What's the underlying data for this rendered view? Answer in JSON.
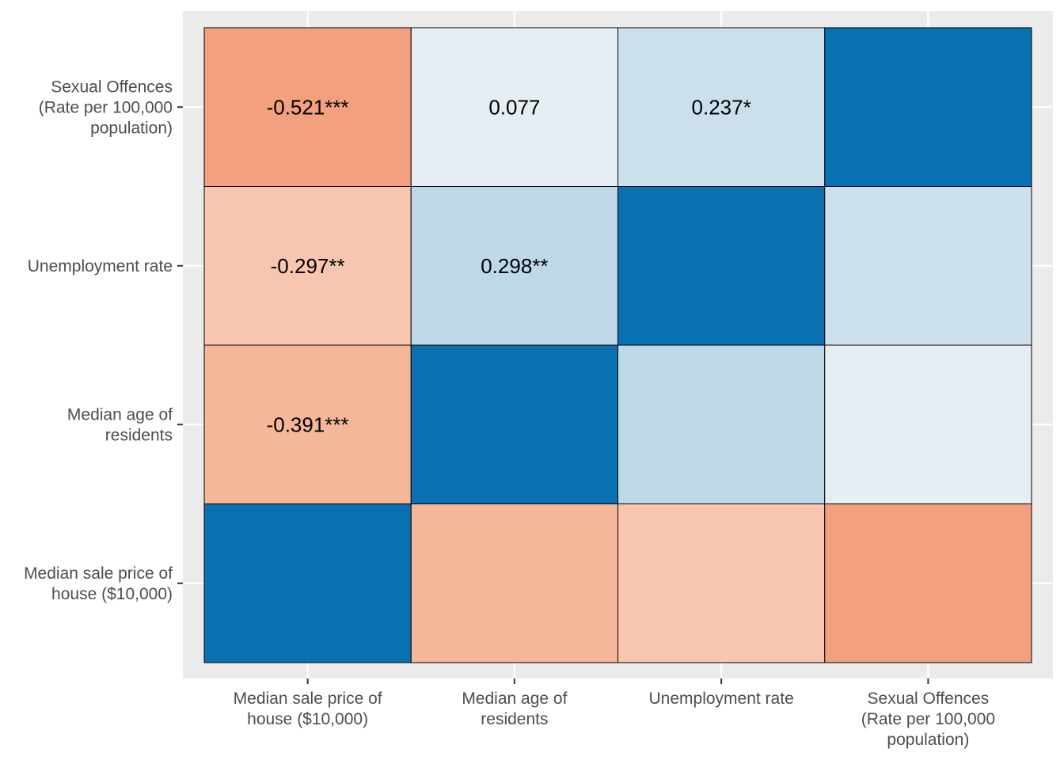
{
  "chart_data": {
    "type": "heatmap",
    "title": "",
    "xlabel": "",
    "ylabel": "",
    "x_categories": [
      [
        "Median sale price of",
        "house ($10,000)"
      ],
      [
        "Median age of",
        "residents"
      ],
      [
        "Unemployment rate"
      ],
      [
        "Sexual Offences",
        "(Rate per 100,000",
        "population)"
      ]
    ],
    "y_categories_bottom_to_top": [
      [
        "Median sale price of",
        "house ($10,000)"
      ],
      [
        "Median age of",
        "residents"
      ],
      [
        "Unemployment rate"
      ],
      [
        "Sexual Offences",
        "(Rate per 100,000",
        "population)"
      ]
    ],
    "matrix": [
      [
        1.0,
        -0.391,
        -0.297,
        -0.521
      ],
      [
        -0.391,
        1.0,
        0.298,
        0.077
      ],
      [
        -0.297,
        0.298,
        1.0,
        0.237
      ],
      [
        -0.521,
        0.077,
        0.237,
        1.0
      ]
    ],
    "labels": [
      [
        "",
        "",
        "",
        ""
      ],
      [
        "-0.391***",
        "",
        "",
        ""
      ],
      [
        "-0.297**",
        "0.298**",
        "",
        ""
      ],
      [
        "-0.521***",
        "0.077",
        "0.237*",
        ""
      ]
    ],
    "colors": {
      "strong_positive": "#0971b2",
      "weak_positive_0.3": "#bdd9e7",
      "weak_positive_0.24": "#cbe0ec",
      "weak_positive_0.08": "#e6eef3",
      "weak_negative_0.3": "#f8c6b0",
      "moderate_negative_0.39": "#f5b69a",
      "moderate_negative_0.52": "#f2a07e",
      "panel_background": "#ebebeb",
      "grid": "#ffffff",
      "cell_border": "#000000"
    },
    "color_scale": {
      "min": -1,
      "max": 1,
      "low": "diverging red",
      "high": "diverging blue"
    },
    "legend": "none",
    "grid": true
  }
}
